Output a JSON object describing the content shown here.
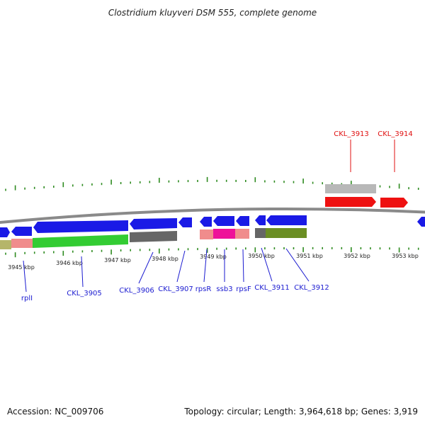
{
  "title": "Clostridium kluyveri DSM 555, complete genome",
  "footer": {
    "accession": "Accession: NC_009706",
    "summary": "Topology: circular; Length: 3,964,618 bp; Genes: 3,919"
  },
  "colors": {
    "backbone": "#8a8a8a",
    "tick": "#2e8b20",
    "forward_gene": "#ee1111",
    "reverse_gene": "#1a1ae6",
    "forward_label": "#e01010",
    "reverse_label": "#1a1ad0"
  },
  "scale_labels": [
    "3945 kbp",
    "3946 kbp",
    "3947 kbp",
    "3948 kbp",
    "3949 kbp",
    "3950 kbp",
    "3951 kbp",
    "3952 kbp",
    "3953 kbp"
  ],
  "forward_labels": [
    "CKL_3913",
    "CKL_3914"
  ],
  "reverse_labels": [
    "rplI",
    "CKL_3905",
    "CKL_3906",
    "CKL_3907",
    "rpsR",
    "ssb3",
    "rpsF",
    "CKL_3911",
    "CKL_3912"
  ],
  "forward_features": [
    {
      "name": "CKL_3913",
      "cds_color": "#ee1111",
      "gene_color": "#b8b8b8"
    },
    {
      "name": "CKL_3914",
      "cds_color": "#ee1111"
    }
  ],
  "reverse_features": [
    {
      "name": "rplI",
      "cds_color": "#1a1ae6",
      "gene_color": "#f08c8c"
    },
    {
      "name": "CKL_3905",
      "cds_color": "#1a1ae6",
      "gene_color": "#33cc33"
    },
    {
      "name": "CKL_3906",
      "cds_color": "#1a1ae6",
      "gene_color": "#666666"
    },
    {
      "name": "CKL_3907",
      "cds_color": "#1a1ae6"
    },
    {
      "name": "rpsR",
      "cds_color": "#1a1ae6",
      "gene_color": "#f08c8c"
    },
    {
      "name": "ssb3",
      "cds_color": "#1a1ae6",
      "gene_color": "#ee1199"
    },
    {
      "name": "rpsF",
      "cds_color": "#1a1ae6",
      "gene_color": "#f08c8c"
    },
    {
      "name": "CKL_3911",
      "cds_color": "#1a1ae6",
      "gene_color": "#666666"
    },
    {
      "name": "CKL_3912",
      "cds_color": "#1a1ae6",
      "gene_color": "#6b8e23"
    }
  ]
}
